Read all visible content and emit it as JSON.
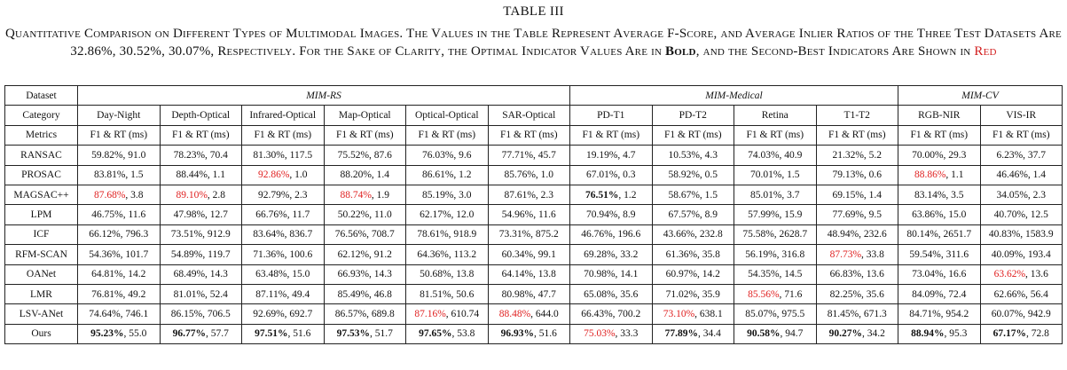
{
  "table_title": "TABLE III",
  "caption": {
    "part1": "Quantitative Comparison on Different Types of Multimodal Images. The Values in the Table Represent Average F-Score, and Average Inlier Ratios of the Three Test Datasets Are 32.86%, 30.52%, 30.07%, Respectively. For the Sake of Clarity, the Optimal Indicator Values Are in ",
    "bold_word": "Bold",
    "part2": ", and the Second-Best Indicators Are Shown in ",
    "red_word": "Red"
  },
  "header": {
    "dataset_label": "Dataset",
    "groups": [
      {
        "name": "MIM-RS",
        "span": 6
      },
      {
        "name": "MIM-Medical",
        "span": 4
      },
      {
        "name": "MIM-CV",
        "span": 2
      }
    ],
    "category_label": "Category",
    "categories": [
      "Day-Night",
      "Depth-Optical",
      "Infrared-Optical",
      "Map-Optical",
      "Optical-Optical",
      "SAR-Optical",
      "PD-T1",
      "PD-T2",
      "Retina",
      "T1-T2",
      "RGB-NIR",
      "VIS-IR"
    ],
    "metrics_label": "Metrics",
    "metric": "F1 & RT (ms)"
  },
  "rows": [
    {
      "method": "RANSAC",
      "cells": [
        [
          "59.82%",
          ", 91.0",
          ""
        ],
        [
          "78.23%",
          ", 70.4",
          ""
        ],
        [
          "81.30%",
          ", 117.5",
          ""
        ],
        [
          "75.52%",
          ", 87.6",
          ""
        ],
        [
          "76.03%",
          ", 9.6",
          ""
        ],
        [
          "77.71%",
          ", 45.7",
          ""
        ],
        [
          "19.19%",
          ", 4.7",
          ""
        ],
        [
          "10.53%",
          ", 4.3",
          ""
        ],
        [
          "74.03%",
          ", 40.9",
          ""
        ],
        [
          "21.32%",
          ", 5.2",
          ""
        ],
        [
          "70.00%",
          ", 29.3",
          ""
        ],
        [
          "6.23%",
          ", 37.7",
          ""
        ]
      ]
    },
    {
      "method": "PROSAC",
      "cells": [
        [
          "83.81%",
          ", 1.5",
          ""
        ],
        [
          "88.44%",
          ", 1.1",
          ""
        ],
        [
          "92.86%",
          ", 1.0",
          "red"
        ],
        [
          "88.20%",
          ", 1.4",
          ""
        ],
        [
          "86.61%",
          ", 1.2",
          ""
        ],
        [
          "85.76%",
          ", 1.0",
          ""
        ],
        [
          "67.01%",
          ", 0.3",
          ""
        ],
        [
          "58.92%",
          ", 0.5",
          ""
        ],
        [
          "70.01%",
          ", 1.5",
          ""
        ],
        [
          "79.13%",
          ", 0.6",
          ""
        ],
        [
          "88.86%",
          ", 1.1",
          "red"
        ],
        [
          "46.46%",
          ", 1.4",
          ""
        ]
      ]
    },
    {
      "method": "MAGSAC++",
      "cells": [
        [
          "87.68%",
          ", 3.8",
          "red"
        ],
        [
          "89.10%",
          ", 2.8",
          "red"
        ],
        [
          "92.79%",
          ", 2.3",
          ""
        ],
        [
          "88.74%",
          ", 1.9",
          "red"
        ],
        [
          "85.19%",
          ", 3.0",
          ""
        ],
        [
          "87.61%",
          ", 2.3",
          ""
        ],
        [
          "76.51%",
          ", 1.2",
          "bold"
        ],
        [
          "58.67%",
          ", 1.5",
          ""
        ],
        [
          "85.01%",
          ", 3.7",
          ""
        ],
        [
          "69.15%",
          ", 1.4",
          ""
        ],
        [
          "83.14%",
          ", 3.5",
          ""
        ],
        [
          "34.05%",
          ", 2.3",
          ""
        ]
      ]
    },
    {
      "method": "LPM",
      "cells": [
        [
          "46.75%",
          ", 11.6",
          ""
        ],
        [
          "47.98%",
          ", 12.7",
          ""
        ],
        [
          "66.76%",
          ", 11.7",
          ""
        ],
        [
          "50.22%",
          ", 11.0",
          ""
        ],
        [
          "62.17%",
          ", 12.0",
          ""
        ],
        [
          "54.96%",
          ", 11.6",
          ""
        ],
        [
          "70.94%",
          ", 8.9",
          ""
        ],
        [
          "67.57%",
          ", 8.9",
          ""
        ],
        [
          "57.99%",
          ", 15.9",
          ""
        ],
        [
          "77.69%",
          ", 9.5",
          ""
        ],
        [
          "63.86%",
          ", 15.0",
          ""
        ],
        [
          "40.70%",
          ", 12.5",
          ""
        ]
      ]
    },
    {
      "method": "ICF",
      "cells": [
        [
          "66.12%",
          ", 796.3",
          ""
        ],
        [
          "73.51%",
          ", 912.9",
          ""
        ],
        [
          "83.64%",
          ", 836.7",
          ""
        ],
        [
          "76.56%",
          ", 708.7",
          ""
        ],
        [
          "78.61%",
          ", 918.9",
          ""
        ],
        [
          "73.31%",
          ", 875.2",
          ""
        ],
        [
          "46.76%",
          ", 196.6",
          ""
        ],
        [
          "43.66%",
          ", 232.8",
          ""
        ],
        [
          "75.58%",
          ", 2628.7",
          ""
        ],
        [
          "48.94%",
          ", 232.6",
          ""
        ],
        [
          "80.14%",
          ", 2651.7",
          ""
        ],
        [
          "40.83%",
          ", 1583.9",
          ""
        ]
      ]
    },
    {
      "method": "RFM-SCAN",
      "cells": [
        [
          "54.36%",
          ", 101.7",
          ""
        ],
        [
          "54.89%",
          ", 119.7",
          ""
        ],
        [
          "71.36%",
          ", 100.6",
          ""
        ],
        [
          "62.12%",
          ", 91.2",
          ""
        ],
        [
          "64.36%",
          ", 113.2",
          ""
        ],
        [
          "60.34%",
          ", 99.1",
          ""
        ],
        [
          "69.28%",
          ", 33.2",
          ""
        ],
        [
          "61.36%",
          ", 35.8",
          ""
        ],
        [
          "56.19%",
          ", 316.8",
          ""
        ],
        [
          "87.73%",
          ", 33.8",
          "red"
        ],
        [
          "59.54%",
          ", 311.6",
          ""
        ],
        [
          "40.09%",
          ", 193.4",
          ""
        ]
      ]
    },
    {
      "method": "OANet",
      "cells": [
        [
          "64.81%",
          ", 14.2",
          ""
        ],
        [
          "68.49%",
          ", 14.3",
          ""
        ],
        [
          "63.48%",
          ", 15.0",
          ""
        ],
        [
          "66.93%",
          ", 14.3",
          ""
        ],
        [
          "50.68%",
          ", 13.8",
          ""
        ],
        [
          "64.14%",
          ", 13.8",
          ""
        ],
        [
          "70.98%",
          ", 14.1",
          ""
        ],
        [
          "60.97%",
          ", 14.2",
          ""
        ],
        [
          "54.35%",
          ", 14.5",
          ""
        ],
        [
          "66.83%",
          ", 13.6",
          ""
        ],
        [
          "73.04%",
          ", 16.6",
          ""
        ],
        [
          "63.62%",
          ", 13.6",
          "red"
        ]
      ]
    },
    {
      "method": "LMR",
      "cells": [
        [
          "76.81%",
          ", 49.2",
          ""
        ],
        [
          "81.01%",
          ", 52.4",
          ""
        ],
        [
          "87.11%",
          ", 49.4",
          ""
        ],
        [
          "85.49%",
          ", 46.8",
          ""
        ],
        [
          "81.51%",
          ", 50.6",
          ""
        ],
        [
          "80.98%",
          ", 47.7",
          ""
        ],
        [
          "65.08%",
          ", 35.6",
          ""
        ],
        [
          "71.02%",
          ", 35.9",
          ""
        ],
        [
          "85.56%",
          ", 71.6",
          "red"
        ],
        [
          "82.25%",
          ", 35.6",
          ""
        ],
        [
          "84.09%",
          ", 72.4",
          ""
        ],
        [
          "62.66%",
          ", 56.4",
          ""
        ]
      ]
    },
    {
      "method": "LSV-ANet",
      "cells": [
        [
          "74.64%",
          ", 746.1",
          ""
        ],
        [
          "86.15%",
          ", 706.5",
          ""
        ],
        [
          "92.69%",
          ", 692.7",
          ""
        ],
        [
          "86.57%",
          ", 689.8",
          ""
        ],
        [
          "87.16%",
          ", 610.74",
          "red"
        ],
        [
          "88.48%",
          ", 644.0",
          "red"
        ],
        [
          "66.43%",
          ", 700.2",
          ""
        ],
        [
          "73.10%",
          ", 638.1",
          "red"
        ],
        [
          "85.07%",
          ", 975.5",
          ""
        ],
        [
          "81.45%",
          ", 671.3",
          ""
        ],
        [
          "84.71%",
          ", 954.2",
          ""
        ],
        [
          "60.07%",
          ", 942.9",
          ""
        ]
      ]
    },
    {
      "method": "Ours",
      "cells": [
        [
          "95.23%",
          ", 55.0",
          "bold"
        ],
        [
          "96.77%",
          ", 57.7",
          "bold"
        ],
        [
          "97.51%",
          ", 51.6",
          "bold"
        ],
        [
          "97.53%",
          ", 51.7",
          "bold"
        ],
        [
          "97.65%",
          ", 53.8",
          "bold"
        ],
        [
          "96.93%",
          ", 51.6",
          "bold"
        ],
        [
          "75.03%",
          ", 33.3",
          "red"
        ],
        [
          "77.89%",
          ", 34.4",
          "bold"
        ],
        [
          "90.58%",
          ", 94.7",
          "bold"
        ],
        [
          "90.27%",
          ", 34.2",
          "bold"
        ],
        [
          "88.94%",
          ", 95.3",
          "bold"
        ],
        [
          "67.17%",
          ", 72.8",
          "bold"
        ]
      ]
    }
  ]
}
